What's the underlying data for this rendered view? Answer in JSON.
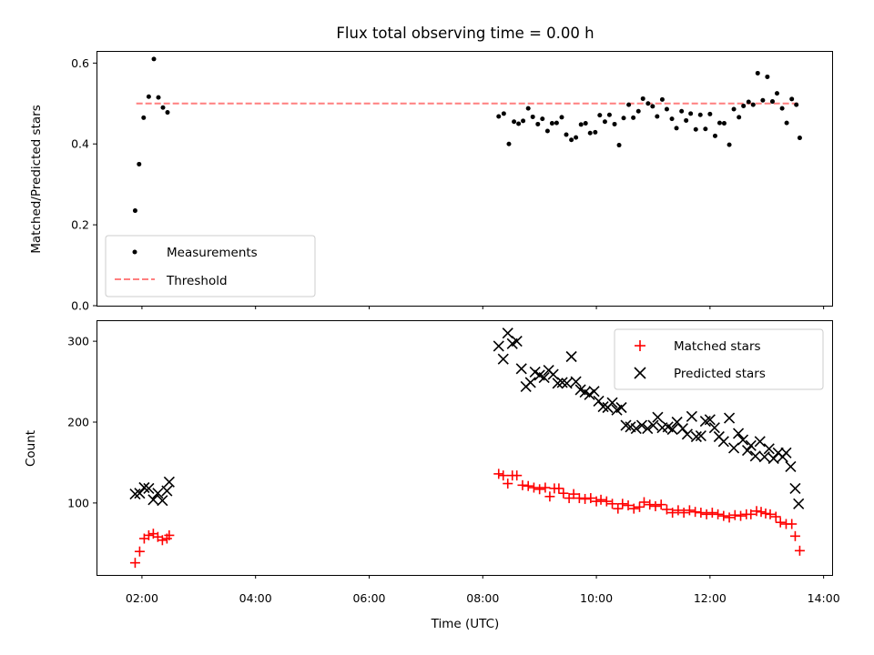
{
  "chart_data": [
    {
      "type": "scatter",
      "title": "Flux total observing time = 0.00 h",
      "xlabel": "",
      "ylabel": "Matched/Predicted stars",
      "xlim": [
        1.2,
        14.15
      ],
      "ylim": [
        0.0,
        0.63
      ],
      "yticks": [
        0.0,
        0.2,
        0.4,
        0.6
      ],
      "ytick_labels": [
        "0.0",
        "0.2",
        "0.4",
        "0.6"
      ],
      "xticks": [
        2,
        4,
        6,
        8,
        10,
        12,
        14
      ],
      "grid": false,
      "legend_position": "lower-left",
      "series": [
        {
          "name": "Measurements",
          "marker": "dot",
          "color": "#000000",
          "points": [
            [
              1.88,
              0.235
            ],
            [
              1.95,
              0.35
            ],
            [
              2.03,
              0.465
            ],
            [
              2.12,
              0.517
            ],
            [
              2.21,
              0.61
            ],
            [
              2.29,
              0.515
            ],
            [
              2.37,
              0.49
            ],
            [
              2.45,
              0.478
            ],
            [
              8.28,
              0.468
            ],
            [
              8.37,
              0.475
            ],
            [
              8.46,
              0.4
            ],
            [
              8.55,
              0.455
            ],
            [
              8.63,
              0.45
            ],
            [
              8.71,
              0.457
            ],
            [
              8.8,
              0.488
            ],
            [
              8.88,
              0.467
            ],
            [
              8.97,
              0.449
            ],
            [
              9.05,
              0.462
            ],
            [
              9.14,
              0.432
            ],
            [
              9.22,
              0.451
            ],
            [
              9.3,
              0.452
            ],
            [
              9.39,
              0.466
            ],
            [
              9.47,
              0.423
            ],
            [
              9.56,
              0.41
            ],
            [
              9.64,
              0.416
            ],
            [
              9.73,
              0.448
            ],
            [
              9.81,
              0.451
            ],
            [
              9.89,
              0.427
            ],
            [
              9.98,
              0.429
            ],
            [
              10.06,
              0.471
            ],
            [
              10.15,
              0.455
            ],
            [
              10.23,
              0.472
            ],
            [
              10.32,
              0.449
            ],
            [
              10.4,
              0.397
            ],
            [
              10.48,
              0.464
            ],
            [
              10.57,
              0.497
            ],
            [
              10.65,
              0.465
            ],
            [
              10.74,
              0.481
            ],
            [
              10.82,
              0.512
            ],
            [
              10.91,
              0.5
            ],
            [
              10.99,
              0.493
            ],
            [
              11.07,
              0.468
            ],
            [
              11.16,
              0.51
            ],
            [
              11.24,
              0.486
            ],
            [
              11.33,
              0.462
            ],
            [
              11.41,
              0.439
            ],
            [
              11.5,
              0.481
            ],
            [
              11.58,
              0.458
            ],
            [
              11.66,
              0.475
            ],
            [
              11.75,
              0.436
            ],
            [
              11.83,
              0.472
            ],
            [
              11.92,
              0.437
            ],
            [
              12.0,
              0.474
            ],
            [
              12.09,
              0.42
            ],
            [
              12.17,
              0.452
            ],
            [
              12.25,
              0.451
            ],
            [
              12.34,
              0.398
            ],
            [
              12.42,
              0.486
            ],
            [
              12.51,
              0.466
            ],
            [
              12.59,
              0.494
            ],
            [
              12.68,
              0.504
            ],
            [
              12.76,
              0.497
            ],
            [
              12.84,
              0.575
            ],
            [
              12.93,
              0.508
            ],
            [
              13.01,
              0.566
            ],
            [
              13.1,
              0.505
            ],
            [
              13.18,
              0.525
            ],
            [
              13.27,
              0.488
            ],
            [
              13.35,
              0.452
            ],
            [
              13.44,
              0.511
            ],
            [
              13.52,
              0.497
            ],
            [
              13.58,
              0.415
            ]
          ]
        },
        {
          "name": "Threshold",
          "marker": "dashed-line",
          "color": "#ff7f7f",
          "points": [
            [
              1.9,
              0.5
            ],
            [
              13.55,
              0.5
            ]
          ]
        }
      ]
    },
    {
      "type": "scatter",
      "title": "",
      "xlabel": "Time (UTC)",
      "ylabel": "Count",
      "xlim": [
        1.2,
        14.15
      ],
      "ylim": [
        11,
        326
      ],
      "yticks": [
        100,
        200,
        300
      ],
      "ytick_labels": [
        "100",
        "200",
        "300"
      ],
      "xticks": [
        2,
        4,
        6,
        8,
        10,
        12,
        14
      ],
      "xtick_labels": [
        "02:00",
        "04:00",
        "06:00",
        "08:00",
        "10:00",
        "12:00",
        "14:00"
      ],
      "grid": false,
      "legend_position": "upper-right",
      "series": [
        {
          "name": "Matched stars",
          "marker": "plus",
          "color": "#ff0000",
          "points": [
            [
              1.88,
              26
            ],
            [
              1.96,
              40
            ],
            [
              2.04,
              56
            ],
            [
              2.12,
              60
            ],
            [
              2.2,
              62
            ],
            [
              2.28,
              58
            ],
            [
              2.36,
              54
            ],
            [
              2.44,
              56
            ],
            [
              2.48,
              60
            ],
            [
              8.28,
              136
            ],
            [
              8.36,
              134
            ],
            [
              8.44,
              124
            ],
            [
              8.52,
              134
            ],
            [
              8.6,
              134
            ],
            [
              8.7,
              122
            ],
            [
              8.8,
              121
            ],
            [
              8.9,
              119
            ],
            [
              9.0,
              117
            ],
            [
              9.1,
              119
            ],
            [
              9.18,
              108
            ],
            [
              9.26,
              118
            ],
            [
              9.34,
              118
            ],
            [
              9.42,
              112
            ],
            [
              9.52,
              106
            ],
            [
              9.6,
              111
            ],
            [
              9.7,
              106
            ],
            [
              9.8,
              105
            ],
            [
              9.9,
              106
            ],
            [
              10.0,
              102
            ],
            [
              10.08,
              104
            ],
            [
              10.18,
              102
            ],
            [
              10.28,
              99
            ],
            [
              10.38,
              93
            ],
            [
              10.46,
              99
            ],
            [
              10.56,
              97
            ],
            [
              10.66,
              93
            ],
            [
              10.76,
              95
            ],
            [
              10.84,
              101
            ],
            [
              10.94,
              98
            ],
            [
              11.04,
              96
            ],
            [
              11.14,
              98
            ],
            [
              11.24,
              92
            ],
            [
              11.34,
              88
            ],
            [
              11.44,
              91
            ],
            [
              11.54,
              88
            ],
            [
              11.64,
              91
            ],
            [
              11.74,
              89
            ],
            [
              11.84,
              88
            ],
            [
              11.94,
              86
            ],
            [
              12.04,
              88
            ],
            [
              12.14,
              86
            ],
            [
              12.24,
              84
            ],
            [
              12.34,
              82
            ],
            [
              12.44,
              85
            ],
            [
              12.54,
              84
            ],
            [
              12.64,
              86
            ],
            [
              12.72,
              86
            ],
            [
              12.82,
              90
            ],
            [
              12.9,
              89
            ],
            [
              12.98,
              87
            ],
            [
              13.06,
              86
            ],
            [
              13.16,
              83
            ],
            [
              13.24,
              76
            ],
            [
              13.34,
              74
            ],
            [
              13.44,
              74
            ],
            [
              13.5,
              59
            ],
            [
              13.58,
              41
            ]
          ]
        },
        {
          "name": "Predicted stars",
          "marker": "x",
          "color": "#000000",
          "points": [
            [
              1.88,
              111
            ],
            [
              1.96,
              112
            ],
            [
              2.04,
              119
            ],
            [
              2.12,
              118
            ],
            [
              2.2,
              104
            ],
            [
              2.28,
              112
            ],
            [
              2.36,
              103
            ],
            [
              2.44,
              115
            ],
            [
              2.48,
              126
            ],
            [
              8.28,
              294
            ],
            [
              8.36,
              278
            ],
            [
              8.44,
              310
            ],
            [
              8.52,
              297
            ],
            [
              8.6,
              300
            ],
            [
              8.68,
              266
            ],
            [
              8.76,
              244
            ],
            [
              8.84,
              249
            ],
            [
              8.92,
              262
            ],
            [
              9.0,
              258
            ],
            [
              9.08,
              255
            ],
            [
              9.16,
              264
            ],
            [
              9.24,
              259
            ],
            [
              9.32,
              248
            ],
            [
              9.4,
              249
            ],
            [
              9.48,
              248
            ],
            [
              9.56,
              281
            ],
            [
              9.64,
              250
            ],
            [
              9.72,
              240
            ],
            [
              9.8,
              237
            ],
            [
              9.88,
              234
            ],
            [
              9.96,
              238
            ],
            [
              10.04,
              226
            ],
            [
              10.12,
              219
            ],
            [
              10.2,
              218
            ],
            [
              10.28,
              224
            ],
            [
              10.36,
              215
            ],
            [
              10.44,
              218
            ],
            [
              10.52,
              196
            ],
            [
              10.6,
              194
            ],
            [
              10.7,
              192
            ],
            [
              10.8,
              196
            ],
            [
              10.9,
              192
            ],
            [
              11.0,
              196
            ],
            [
              11.08,
              206
            ],
            [
              11.16,
              193
            ],
            [
              11.26,
              194
            ],
            [
              11.34,
              191
            ],
            [
              11.42,
              200
            ],
            [
              11.52,
              192
            ],
            [
              11.6,
              185
            ],
            [
              11.68,
              207
            ],
            [
              11.76,
              182
            ],
            [
              11.84,
              183
            ],
            [
              11.92,
              201
            ],
            [
              12.0,
              203
            ],
            [
              12.08,
              193
            ],
            [
              12.16,
              182
            ],
            [
              12.24,
              176
            ],
            [
              12.34,
              205
            ],
            [
              12.42,
              168
            ],
            [
              12.5,
              186
            ],
            [
              12.58,
              178
            ],
            [
              12.66,
              165
            ],
            [
              12.72,
              171
            ],
            [
              12.8,
              158
            ],
            [
              12.88,
              176
            ],
            [
              12.96,
              157
            ],
            [
              13.04,
              167
            ],
            [
              13.12,
              155
            ],
            [
              13.2,
              162
            ],
            [
              13.28,
              157
            ],
            [
              13.34,
              162
            ],
            [
              13.42,
              145
            ],
            [
              13.5,
              118
            ],
            [
              13.56,
              99
            ]
          ]
        }
      ]
    }
  ]
}
